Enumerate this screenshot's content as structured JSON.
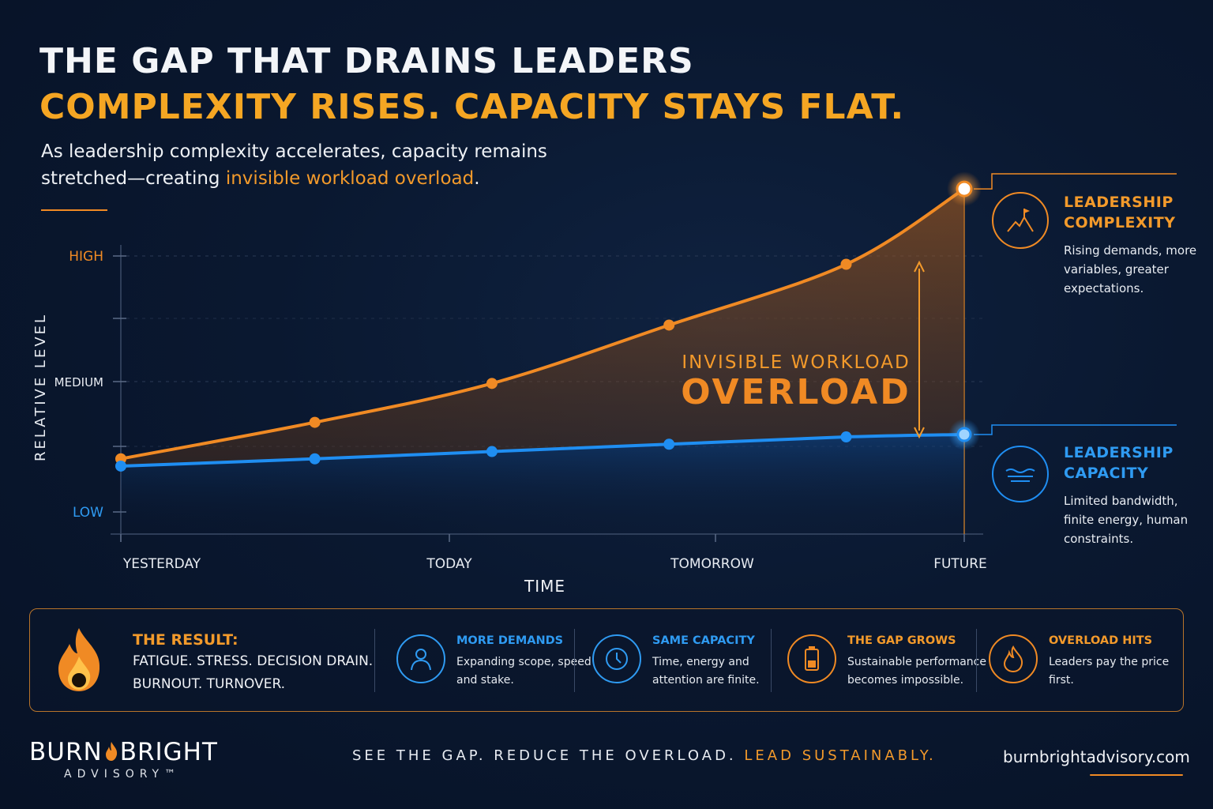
{
  "header": {
    "title": "THE GAP THAT DRAINS LEADERS",
    "subtitle": "COMPLEXITY RISES. CAPACITY STAYS FLAT.",
    "lede_part1": "As leadership complexity accelerates, capacity remains stretched—creating ",
    "lede_highlight": "invisible workload overload",
    "lede_part2": "."
  },
  "chart_data": {
    "type": "line",
    "xlabel": "TIME",
    "ylabel": "RELATIVE LEVEL",
    "x_ticks": [
      "YESTERDAY",
      "TODAY",
      "TOMORROW",
      "FUTURE"
    ],
    "y_ticks": [
      "LOW",
      "MEDIUM",
      "HIGH"
    ],
    "ylim": [
      0,
      1
    ],
    "grid": true,
    "series": [
      {
        "name": "LEADERSHIP COMPLEXITY",
        "color": "#f08a24",
        "points": [
          [
            0.0,
            0.16
          ],
          [
            0.23,
            0.31
          ],
          [
            0.44,
            0.47
          ],
          [
            0.65,
            0.71
          ],
          [
            0.86,
            0.96
          ],
          [
            1.0,
            1.27
          ]
        ]
      },
      {
        "name": "LEADERSHIP CAPACITY",
        "color": "#1f8ef2",
        "points": [
          [
            0.0,
            0.13
          ],
          [
            0.23,
            0.16
          ],
          [
            0.44,
            0.19
          ],
          [
            0.65,
            0.22
          ],
          [
            0.86,
            0.25
          ],
          [
            1.0,
            0.26
          ]
        ]
      }
    ],
    "annotation": {
      "line1": "INVISIBLE WORKLOAD",
      "line2": "OVERLOAD"
    }
  },
  "side": {
    "complexity": {
      "title_line1": "LEADERSHIP",
      "title_line2": "COMPLEXITY",
      "desc": "Rising demands, more variables, greater expectations.",
      "icon": "mountain-flag-icon",
      "color": "#f08a24"
    },
    "capacity": {
      "title_line1": "LEADERSHIP",
      "title_line2": "CAPACITY",
      "desc": "Limited bandwidth, finite energy, human constraints.",
      "icon": "water-level-icon",
      "color": "#1f8ef2"
    }
  },
  "result": {
    "head": "THE RESULT:",
    "line1": "FATIGUE. STRESS. DECISION DRAIN.",
    "line2": "BURNOUT. TURNOVER.",
    "icon": "flame-icon",
    "items": [
      {
        "title": "MORE DEMANDS",
        "desc": "Expanding scope, speed and stake.",
        "icon": "person-icon",
        "color": "#2f9bf2"
      },
      {
        "title": "SAME CAPACITY",
        "desc": "Time, energy and attention are finite.",
        "icon": "clock-icon",
        "color": "#2f9bf2"
      },
      {
        "title": "THE GAP GROWS",
        "desc": "Sustainable performance becomes impossible.",
        "icon": "battery-icon",
        "color": "#f08a24"
      },
      {
        "title": "OVERLOAD HITS",
        "desc": "Leaders pay the price first.",
        "icon": "flame-icon",
        "color": "#f08a24"
      }
    ]
  },
  "footer": {
    "brand_left": "BURN",
    "brand_right": "BRIGHT",
    "brand_sub": "ADVISORY™",
    "tagline_part1": "SEE THE GAP. REDUCE THE OVERLOAD. ",
    "tagline_highlight": "LEAD SUSTAINABLY.",
    "site": "burnbrightadvisory.com"
  }
}
